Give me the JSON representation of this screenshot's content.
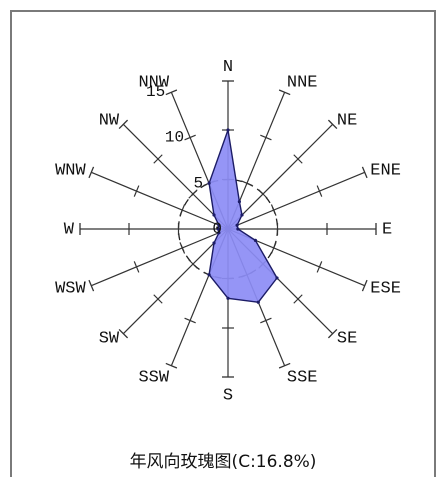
{
  "chart_data": {
    "type": "wind-rose",
    "directions": [
      "N",
      "NNE",
      "NE",
      "ENE",
      "E",
      "ESE",
      "SE",
      "SSE",
      "S",
      "SSW",
      "SW",
      "WSW",
      "W",
      "WNW",
      "NW",
      "NNW"
    ],
    "values": [
      10,
      3,
      2,
      1,
      1,
      3,
      7,
      8,
      7,
      5,
      2,
      1,
      1,
      1,
      2,
      5
    ],
    "calm_percent": 16.8,
    "radial_ticks": [
      0,
      5,
      10,
      15
    ],
    "r_max": 15,
    "grid": "dashed circle at 5",
    "fill_color": "#8c8cf5",
    "stroke_color": "#1c1c66"
  },
  "caption": "年风向玫瑰图(C:16.8%)"
}
